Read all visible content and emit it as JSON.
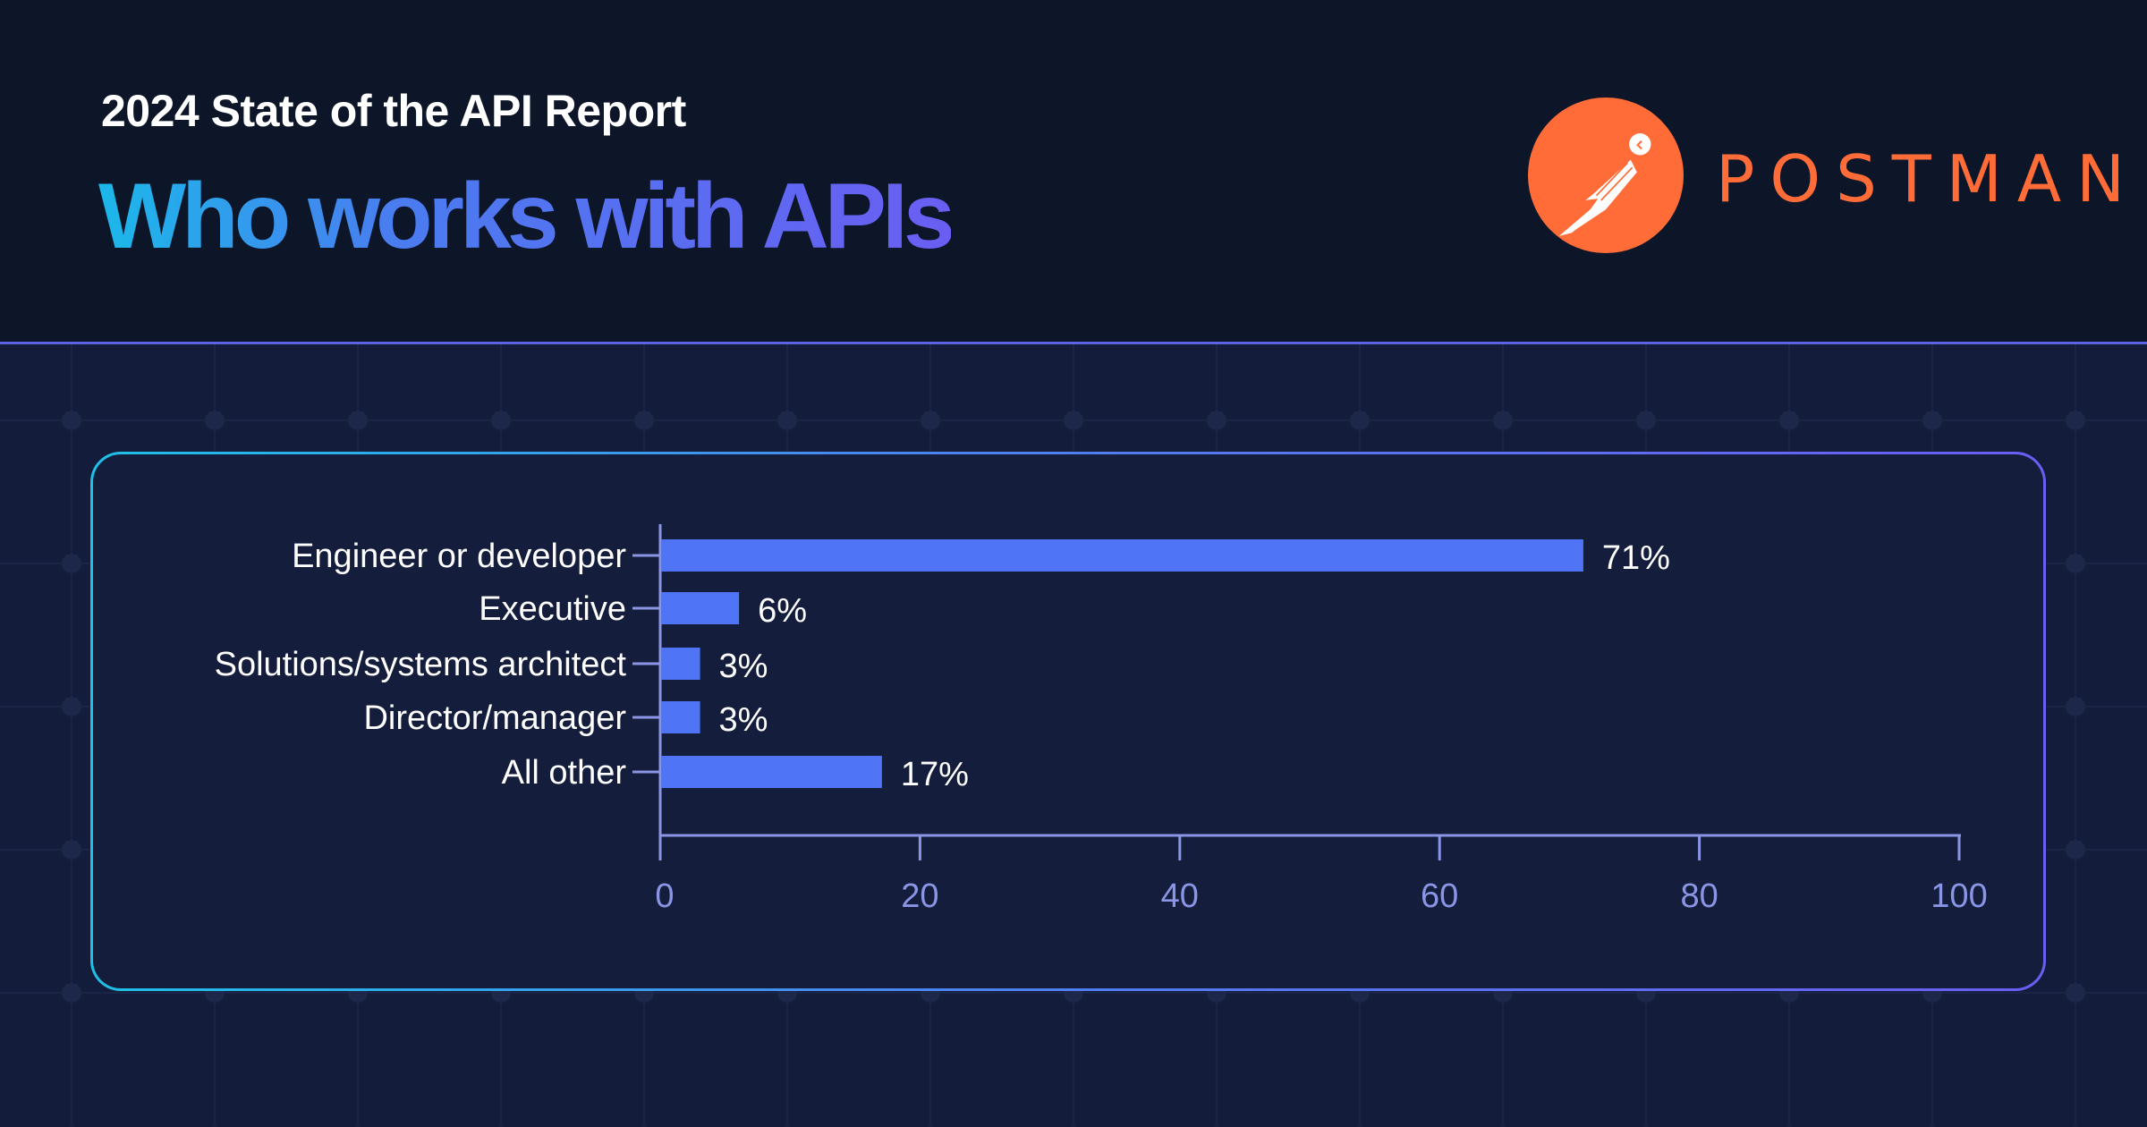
{
  "header": {
    "subtitle": "2024 State of the API Report",
    "title": "Who works with APIs",
    "brand": "POSTMAN"
  },
  "colors": {
    "header_bg": "#0d1529",
    "body_bg": "#131c3a",
    "bar": "#4f74f5",
    "axis": "#8a95e6",
    "brand": "#ff6c37"
  },
  "chart_data": {
    "type": "bar",
    "orientation": "horizontal",
    "categories": [
      "Engineer or developer",
      "Executive",
      "Solutions/systems architect",
      "Director/manager",
      "All other"
    ],
    "values": [
      71,
      6,
      3,
      3,
      17
    ],
    "value_labels": [
      "71%",
      "6%",
      "3%",
      "3%",
      "17%"
    ],
    "xlim": [
      0,
      100
    ],
    "xticks": [
      0,
      20,
      40,
      60,
      80,
      100
    ],
    "xtick_labels": [
      "0",
      "20",
      "40",
      "60",
      "80",
      "100"
    ],
    "grid": false,
    "legend": "none"
  }
}
